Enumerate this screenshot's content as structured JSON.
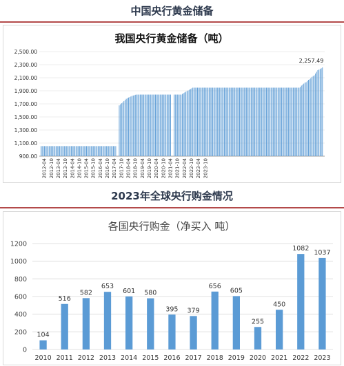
{
  "page": {
    "banner_top": "中国央行黄金储备",
    "banner_bottom": "2023年全球央行购金情况"
  },
  "colors": {
    "bar": "#5b9bd5",
    "banner_rule": "#b34a4a",
    "banner_text": "#2e3a4e",
    "grid": "#d9d9d9"
  },
  "chart_data": [
    {
      "type": "bar",
      "title": "我国央行黄金储备（吨）",
      "ylim": [
        900,
        2500
      ],
      "yticks": [
        900,
        1100,
        1300,
        1500,
        1700,
        1900,
        2100,
        2300,
        2500
      ],
      "ytick_labels": [
        "900.00",
        "1,100.00",
        "1,300.00",
        "1,500.00",
        "1,700.00",
        "1,900.00",
        "2,100.00",
        "2,300.00",
        "2,500.00"
      ],
      "x_tick_labels": [
        "2012-04",
        "2012-10",
        "2013-04",
        "2013-10",
        "2014-04",
        "2014-10",
        "2015-04",
        "2015-10",
        "2016-04",
        "2016-10",
        "2017-04",
        "2017-10",
        "2018-04",
        "2018-10",
        "2019-04",
        "2019-10",
        "2020-04",
        "2020-10",
        "2021-04",
        "2021-10",
        "2022-04",
        "2022-10",
        "2023-04",
        "2023-10"
      ],
      "start_month": "2012-01",
      "annotation": "2,257.49",
      "gaps_after_month": [
        "2017-05",
        "2021-04"
      ],
      "values": [
        1054,
        1054,
        1054,
        1054,
        1054,
        1054,
        1054,
        1054,
        1054,
        1054,
        1054,
        1054,
        1054,
        1054,
        1054,
        1054,
        1054,
        1054,
        1054,
        1054,
        1054,
        1054,
        1054,
        1054,
        1054,
        1054,
        1054,
        1054,
        1054,
        1054,
        1054,
        1054,
        1054,
        1054,
        1054,
        1054,
        1054,
        1054,
        1054,
        1054,
        1054,
        1054,
        1054,
        1054,
        1054,
        1054,
        1054,
        1054,
        1054,
        1054,
        1054,
        1054,
        1054,
        1054,
        1054,
        1054,
        1054,
        1054,
        1054,
        1054,
        1054,
        1054,
        1054,
        1054,
        1054,
        1054,
        1658,
        1677,
        1693,
        1709,
        1722,
        1743,
        1762,
        1778,
        1788,
        1797,
        1805,
        1814,
        1823,
        1828,
        1833,
        1839,
        1842,
        1842,
        1842,
        1842,
        1842,
        1842,
        1842,
        1842,
        1842,
        1842,
        1842,
        1842,
        1842,
        1842,
        1842,
        1842,
        1842,
        1842,
        1842,
        1842,
        1842,
        1842,
        1842,
        1842,
        1842,
        1842,
        1842,
        1842,
        1842,
        1842,
        1842,
        1842,
        1842,
        1842,
        1842,
        1842,
        1842,
        1842,
        1842,
        1852,
        1864,
        1874,
        1885,
        1896,
        1906,
        1917,
        1927,
        1937,
        1948,
        1948,
        1948,
        1948,
        1948,
        1948,
        1948,
        1948,
        1948,
        1948,
        1948,
        1948,
        1948,
        1948,
        1948,
        1948,
        1948,
        1948,
        1948,
        1948,
        1948,
        1948,
        1948,
        1948,
        1948,
        1948,
        1948,
        1948,
        1948,
        1948,
        1948,
        1948,
        1948,
        1948,
        1948,
        1948,
        1948,
        1948,
        1948,
        1948,
        1948,
        1948,
        1948,
        1948,
        1948,
        1948,
        1948,
        1948,
        1948,
        1948,
        1948,
        1948,
        1948,
        1948,
        1948,
        1948,
        1948,
        1948,
        1948,
        1948,
        1948,
        1948,
        1948,
        1948,
        1948,
        1948,
        1948,
        1948,
        1948,
        1948,
        1948,
        1948,
        1948,
        1948,
        1948,
        1948,
        1948,
        1948,
        1948,
        1948,
        1948,
        1948,
        1948,
        1948,
        1948,
        1948,
        1948,
        1948,
        1948,
        1948,
        1948,
        1948,
        1958,
        1980,
        1995,
        2010,
        2025,
        2032,
        2050,
        2068,
        2076,
        2092,
        2113,
        2126,
        2137,
        2165,
        2192,
        2215,
        2226,
        2235,
        2245,
        2257.49
      ]
    },
    {
      "type": "bar",
      "title": "各国央行购金（净买入 吨）",
      "categories": [
        "2010",
        "2011",
        "2012",
        "2013",
        "2014",
        "2015",
        "2016",
        "2017",
        "2018",
        "2019",
        "2020",
        "2021",
        "2022",
        "2023"
      ],
      "values": [
        104,
        516,
        582,
        653,
        601,
        580,
        395,
        379,
        656,
        605,
        255,
        450,
        1082,
        1037
      ],
      "ylim": [
        0,
        1200
      ],
      "yticks": [
        0,
        200,
        400,
        600,
        800,
        1000,
        1200
      ],
      "ytick_labels": [
        "0",
        "200",
        "400",
        "600",
        "800",
        "1000",
        "1200"
      ],
      "grid": true
    }
  ]
}
